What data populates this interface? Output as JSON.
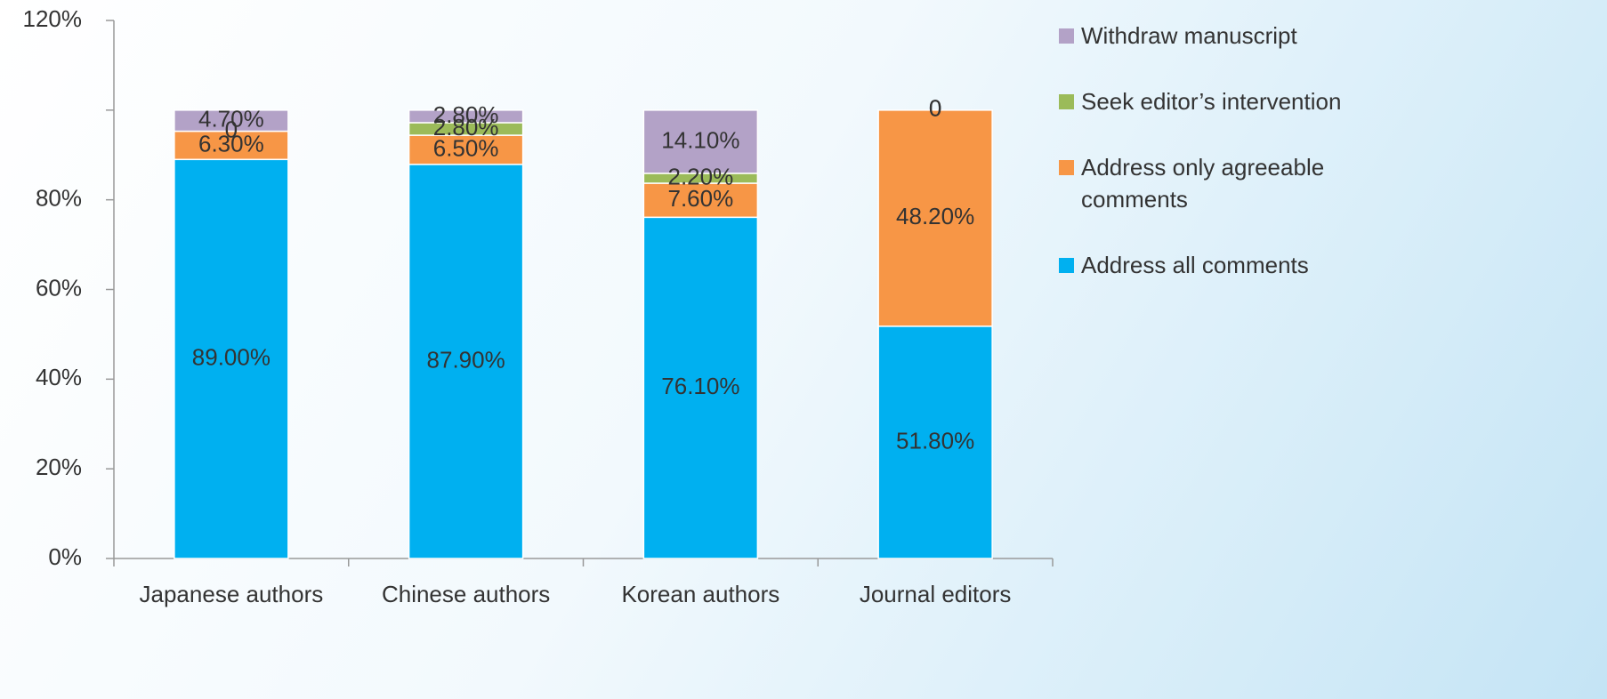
{
  "chart_data": {
    "type": "stacked_bar",
    "categories": [
      "Japanese authors",
      "Chinese authors",
      "Korean authors",
      "Journal editors"
    ],
    "series": [
      {
        "name": "Address all comments",
        "color": "#00b0f0",
        "values": [
          89.0,
          87.9,
          76.1,
          51.8
        ],
        "value_labels": [
          "89.00%",
          "87.90%",
          "76.10%",
          "51.80%"
        ]
      },
      {
        "name": "Address only agreeable comments",
        "color": "#f79646",
        "values": [
          6.3,
          6.5,
          7.6,
          48.2
        ],
        "value_labels": [
          "6.30%",
          "6.50%",
          "7.60%",
          "48.20%"
        ]
      },
      {
        "name": "Seek editor’s intervention",
        "color": "#9bbb59",
        "values": [
          0,
          2.8,
          2.2,
          0
        ],
        "value_labels": [
          "0",
          "2.80%",
          "2.20%",
          "0"
        ]
      },
      {
        "name": "Withdraw manuscript",
        "color": "#b3a2c7",
        "values": [
          4.7,
          2.8,
          14.1,
          0
        ],
        "value_labels": [
          "4.70%",
          "2.80%",
          "14.10%",
          "0"
        ]
      }
    ],
    "ylim": [
      0,
      120
    ],
    "yticks": [
      {
        "value": 0,
        "label": "0%"
      },
      {
        "value": 20,
        "label": "20%"
      },
      {
        "value": 40,
        "label": "40%"
      },
      {
        "value": 60,
        "label": "60%"
      },
      {
        "value": 80,
        "label": "80%"
      },
      {
        "value": 100,
        "label": null
      },
      {
        "value": 120,
        "label": "120%"
      }
    ],
    "legend": "right"
  }
}
